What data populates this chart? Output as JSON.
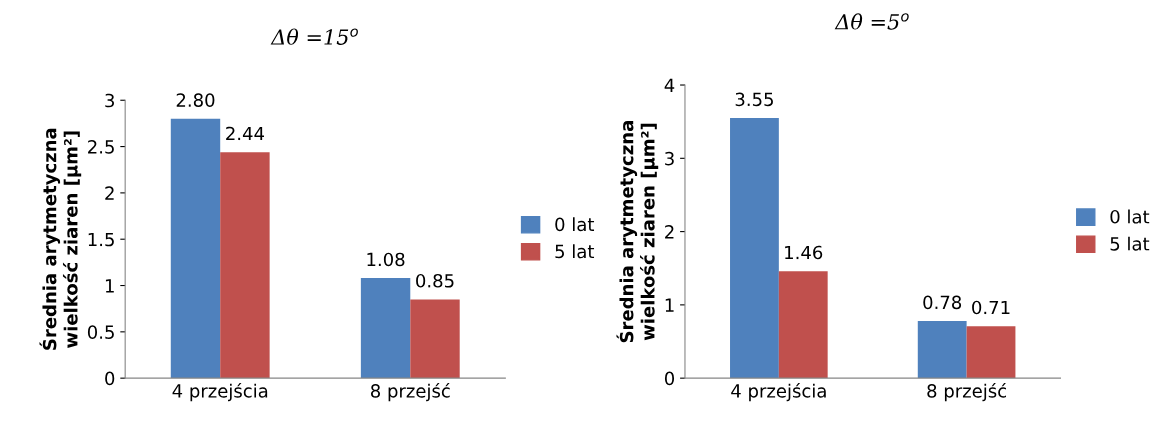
{
  "chart_data": [
    {
      "type": "bar",
      "title": "Δθ =15$^{o}$",
      "ylabel": "Średnia arytmetyczna\nwielkość ziaren [µm²]",
      "categories": [
        "4 przejścia",
        "8 przejść"
      ],
      "series": [
        {
          "name": "0 lat",
          "color": "#4f81bd",
          "values": [
            2.8,
            1.08
          ],
          "value_labels": [
            "2.80",
            "1.08"
          ]
        },
        {
          "name": "5 lat",
          "color": "#c0504d",
          "values": [
            2.44,
            0.85
          ],
          "value_labels": [
            "2.44",
            "0.85"
          ]
        }
      ],
      "ylim": [
        0,
        3
      ],
      "yticks": [
        0,
        0.5,
        1,
        1.5,
        2,
        2.5,
        3
      ],
      "legend": "right",
      "grid": false
    },
    {
      "type": "bar",
      "title": "Δθ =5$^{o}$",
      "ylabel": "Średnia arytmetyczna\nwielkość ziaren [µm²]",
      "categories": [
        "4 przejścia",
        "8 przejść"
      ],
      "series": [
        {
          "name": "0 lat",
          "color": "#4f81bd",
          "values": [
            3.55,
            0.78
          ],
          "value_labels": [
            "3.55",
            "0.78"
          ]
        },
        {
          "name": "5 lat",
          "color": "#c0504d",
          "values": [
            1.46,
            0.71
          ],
          "value_labels": [
            "1.46",
            "0.71"
          ]
        }
      ],
      "ylim": [
        0,
        4
      ],
      "yticks": [
        0,
        1,
        2,
        3,
        4
      ],
      "legend": "right",
      "grid": false
    }
  ]
}
